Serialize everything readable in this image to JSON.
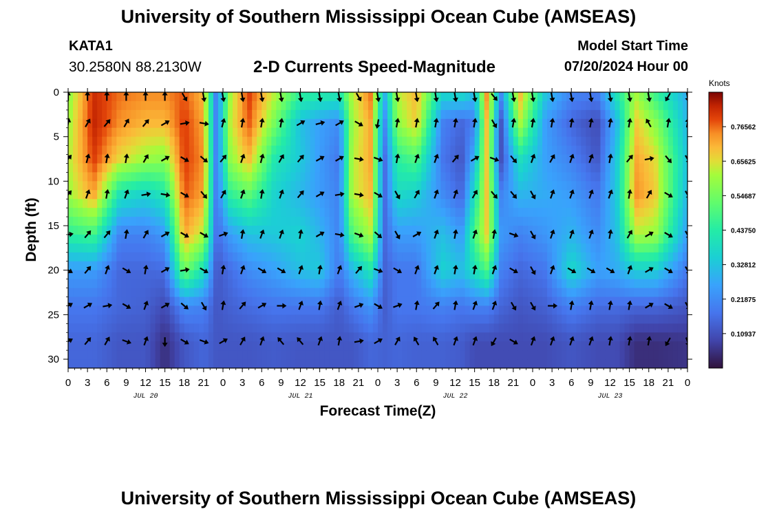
{
  "header": {
    "title": "University of Southern Mississippi Ocean Cube (AMSEAS)",
    "station_id": "KATA1",
    "station_coords": "30.2580N  88.2130W",
    "plot_title": "2-D Currents Speed-Magnitude",
    "model_start_label": "Model Start Time",
    "model_start_value": "07/20/2024 Hour 00"
  },
  "footer": {
    "title": "University of Southern Mississippi Ocean Cube (AMSEAS)"
  },
  "colors": {
    "axis": "#000000",
    "arrow": "#000000"
  },
  "chart_data": {
    "type": "heatmap",
    "title": "2-D Currents Speed-Magnitude",
    "xlabel": "Forecast Time(Z)",
    "ylabel": "Depth (ft)",
    "xlim": [
      0,
      96
    ],
    "ylim": [
      31,
      0
    ],
    "x_ticks": [
      0,
      3,
      6,
      9,
      12,
      15,
      18,
      21,
      24,
      27,
      30,
      33,
      36,
      39,
      42,
      45,
      48,
      51,
      54,
      57,
      60,
      63,
      66,
      69,
      72,
      75,
      78,
      81,
      84,
      87,
      90,
      93,
      96
    ],
    "x_tick_labels": [
      "0",
      "3",
      "6",
      "9",
      "12",
      "15",
      "18",
      "21",
      "0",
      "3",
      "6",
      "9",
      "12",
      "15",
      "18",
      "21",
      "0",
      "3",
      "6",
      "9",
      "12",
      "15",
      "18",
      "21",
      "0",
      "3",
      "6",
      "9",
      "12",
      "15",
      "18",
      "21",
      "0"
    ],
    "date_labels": [
      {
        "label": "JUL 20",
        "hour": 12
      },
      {
        "label": "JUL 21",
        "hour": 36
      },
      {
        "label": "JUL 22",
        "hour": 60
      },
      {
        "label": "JUL 23",
        "hour": 84
      }
    ],
    "y_ticks": [
      0,
      5,
      10,
      15,
      20,
      25,
      30
    ],
    "y_tick_labels": [
      "0",
      "5",
      "10",
      "15",
      "20",
      "25",
      "30"
    ],
    "colorbar": {
      "label": "Knots",
      "range": [
        0.0,
        0.875
      ],
      "ticks": [
        0.10937,
        0.21875,
        0.32812,
        0.4375,
        0.54687,
        0.65625,
        0.76562
      ],
      "tick_labels": [
        "0.10937",
        "0.21875",
        "0.32812",
        "0.43750",
        "0.54687",
        "0.65625",
        "0.76562"
      ]
    },
    "arrow_depths": [
      0.5,
      3.5,
      7.5,
      11.5,
      16,
      20,
      24,
      28
    ],
    "speed_columns": [
      {
        "hour": 0,
        "speed": [
          0.58,
          0.6,
          0.62,
          0.6,
          0.45,
          0.25,
          0.18,
          0.15
        ]
      },
      {
        "hour": 4,
        "speed": [
          0.82,
          0.83,
          0.8,
          0.72,
          0.48,
          0.25,
          0.18,
          0.15
        ]
      },
      {
        "hour": 8,
        "speed": [
          0.76,
          0.74,
          0.66,
          0.4,
          0.2,
          0.15,
          0.15,
          0.12
        ]
      },
      {
        "hour": 12,
        "speed": [
          0.74,
          0.7,
          0.6,
          0.36,
          0.2,
          0.15,
          0.14,
          0.12
        ]
      },
      {
        "hour": 15,
        "speed": [
          0.74,
          0.7,
          0.58,
          0.42,
          0.25,
          0.16,
          0.1,
          0.05
        ]
      },
      {
        "hour": 18,
        "speed": [
          0.78,
          0.8,
          0.8,
          0.78,
          0.72,
          0.55,
          0.22,
          0.12
        ]
      },
      {
        "hour": 21,
        "speed": [
          0.7,
          0.72,
          0.74,
          0.72,
          0.62,
          0.4,
          0.2,
          0.15
        ]
      },
      {
        "hour": 23,
        "speed": [
          0.18,
          0.18,
          0.18,
          0.17,
          0.15,
          0.12,
          0.12,
          0.12
        ]
      },
      {
        "hour": 25,
        "speed": [
          0.6,
          0.62,
          0.58,
          0.45,
          0.25,
          0.16,
          0.14,
          0.12
        ]
      },
      {
        "hour": 28,
        "speed": [
          0.8,
          0.78,
          0.7,
          0.52,
          0.32,
          0.22,
          0.16,
          0.12
        ]
      },
      {
        "hour": 32,
        "speed": [
          0.62,
          0.55,
          0.42,
          0.36,
          0.34,
          0.26,
          0.18,
          0.13
        ]
      },
      {
        "hour": 36,
        "speed": [
          0.44,
          0.32,
          0.34,
          0.3,
          0.36,
          0.32,
          0.18,
          0.12
        ]
      },
      {
        "hour": 39,
        "speed": [
          0.42,
          0.26,
          0.25,
          0.25,
          0.3,
          0.34,
          0.18,
          0.12
        ]
      },
      {
        "hour": 42,
        "speed": [
          0.4,
          0.22,
          0.18,
          0.2,
          0.2,
          0.18,
          0.13,
          0.12
        ]
      },
      {
        "hour": 44,
        "speed": [
          0.62,
          0.6,
          0.62,
          0.62,
          0.5,
          0.3,
          0.18,
          0.12
        ]
      },
      {
        "hour": 47,
        "speed": [
          0.76,
          0.72,
          0.72,
          0.7,
          0.62,
          0.42,
          0.24,
          0.15
        ]
      },
      {
        "hour": 49,
        "speed": [
          0.28,
          0.2,
          0.15,
          0.15,
          0.15,
          0.14,
          0.13,
          0.14
        ]
      },
      {
        "hour": 51,
        "speed": [
          0.62,
          0.58,
          0.45,
          0.38,
          0.25,
          0.18,
          0.18,
          0.15
        ]
      },
      {
        "hour": 54,
        "speed": [
          0.7,
          0.68,
          0.5,
          0.35,
          0.25,
          0.18,
          0.18,
          0.14
        ]
      },
      {
        "hour": 58,
        "speed": [
          0.35,
          0.2,
          0.18,
          0.22,
          0.32,
          0.36,
          0.2,
          0.14
        ]
      },
      {
        "hour": 61,
        "speed": [
          0.36,
          0.15,
          0.12,
          0.15,
          0.25,
          0.32,
          0.18,
          0.13
        ]
      },
      {
        "hour": 63,
        "speed": [
          0.3,
          0.2,
          0.3,
          0.4,
          0.5,
          0.4,
          0.2,
          0.1
        ]
      },
      {
        "hour": 65,
        "speed": [
          0.76,
          0.72,
          0.7,
          0.7,
          0.68,
          0.5,
          0.2,
          0.1
        ]
      },
      {
        "hour": 67,
        "speed": [
          0.2,
          0.1,
          0.1,
          0.2,
          0.25,
          0.2,
          0.15,
          0.1
        ]
      },
      {
        "hour": 70,
        "speed": [
          0.7,
          0.62,
          0.4,
          0.3,
          0.2,
          0.15,
          0.12,
          0.1
        ]
      },
      {
        "hour": 74,
        "speed": [
          0.32,
          0.25,
          0.26,
          0.28,
          0.24,
          0.18,
          0.14,
          0.1
        ]
      },
      {
        "hour": 78,
        "speed": [
          0.2,
          0.15,
          0.2,
          0.25,
          0.3,
          0.38,
          0.2,
          0.12
        ]
      },
      {
        "hour": 82,
        "speed": [
          0.18,
          0.1,
          0.12,
          0.18,
          0.22,
          0.26,
          0.16,
          0.1
        ]
      },
      {
        "hour": 85,
        "speed": [
          0.4,
          0.3,
          0.34,
          0.34,
          0.32,
          0.28,
          0.16,
          0.1
        ]
      },
      {
        "hour": 88,
        "speed": [
          0.62,
          0.68,
          0.72,
          0.74,
          0.62,
          0.35,
          0.15,
          0.05
        ]
      },
      {
        "hour": 91,
        "speed": [
          0.48,
          0.58,
          0.66,
          0.68,
          0.6,
          0.35,
          0.15,
          0.05
        ]
      },
      {
        "hour": 96,
        "speed": [
          0.28,
          0.3,
          0.32,
          0.3,
          0.25,
          0.18,
          0.12,
          0.06
        ]
      }
    ],
    "vector_hours": [
      0,
      3,
      6,
      9,
      12,
      15,
      18,
      21,
      24,
      27,
      30,
      33,
      36,
      39,
      42,
      45,
      48,
      51,
      54,
      57,
      60,
      63,
      66,
      69,
      72,
      75,
      78,
      81,
      84,
      87,
      90,
      93,
      96
    ],
    "vector_direction_deg_by_depth": [
      [
        0,
        0,
        0,
        0,
        0,
        0,
        150,
        170,
        170,
        170,
        170,
        170,
        170,
        170,
        170,
        150,
        170,
        170,
        170,
        170,
        170,
        170,
        140,
        170,
        170,
        170,
        170,
        170,
        170,
        170,
        170,
        210,
        170
      ],
      [
        10,
        30,
        40,
        30,
        40,
        60,
        80,
        100,
        15,
        10,
        10,
        10,
        60,
        75,
        60,
        120,
        190,
        10,
        10,
        10,
        10,
        10,
        150,
        10,
        10,
        10,
        10,
        10,
        10,
        10,
        330,
        10,
        10
      ],
      [
        40,
        15,
        10,
        10,
        30,
        60,
        120,
        130,
        40,
        20,
        15,
        30,
        40,
        60,
        60,
        100,
        110,
        10,
        20,
        20,
        40,
        60,
        110,
        140,
        20,
        30,
        20,
        20,
        10,
        40,
        80,
        140,
        150
      ],
      [
        40,
        20,
        10,
        20,
        80,
        100,
        120,
        140,
        30,
        20,
        10,
        20,
        40,
        60,
        80,
        100,
        120,
        150,
        30,
        20,
        20,
        30,
        140,
        140,
        150,
        20,
        20,
        20,
        20,
        10,
        30,
        120,
        150
      ],
      [
        80,
        40,
        40,
        10,
        30,
        60,
        120,
        120,
        70,
        10,
        20,
        20,
        10,
        60,
        100,
        110,
        130,
        150,
        60,
        20,
        10,
        20,
        10,
        110,
        150,
        20,
        20,
        20,
        10,
        30,
        60,
        120,
        150
      ],
      [
        120,
        40,
        20,
        120,
        10,
        60,
        80,
        120,
        10,
        20,
        120,
        120,
        20,
        10,
        20,
        40,
        110,
        120,
        20,
        20,
        10,
        10,
        20,
        120,
        150,
        20,
        120,
        120,
        120,
        20,
        60,
        120,
        150
      ],
      [
        60,
        60,
        80,
        120,
        20,
        60,
        130,
        150,
        10,
        40,
        60,
        90,
        20,
        10,
        20,
        70,
        120,
        70,
        10,
        40,
        10,
        20,
        20,
        150,
        150,
        90,
        10,
        10,
        10,
        10,
        60,
        120,
        150
      ],
      [
        60,
        40,
        30,
        110,
        20,
        180,
        120,
        110,
        60,
        30,
        20,
        320,
        320,
        20,
        10,
        80,
        60,
        30,
        330,
        330,
        20,
        20,
        210,
        120,
        20,
        20,
        20,
        20,
        10,
        10,
        10,
        210,
        160
      ]
    ]
  }
}
